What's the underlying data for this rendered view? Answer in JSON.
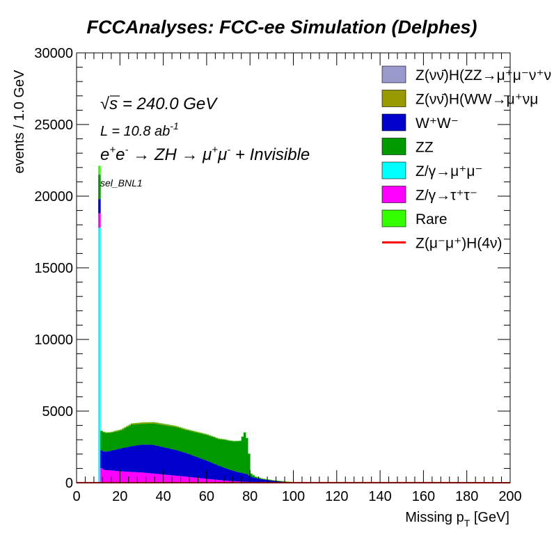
{
  "chart_data": {
    "type": "bar",
    "stacked": true,
    "histogram": true,
    "title": "FCCAnalyses: FCC-ee Simulation (Delphes)",
    "xlabel": "Missing p_T [GeV]",
    "xlabel_main": "Missing p",
    "xlabel_sub": "T",
    "xlabel_tail": " [GeV]",
    "ylabel": "events / 1.0 GeV",
    "xlim": [
      0,
      200
    ],
    "ylim": [
      0,
      30000
    ],
    "x_ticks": [
      "0",
      "20",
      "40",
      "60",
      "80",
      "100",
      "120",
      "140",
      "160",
      "180",
      "200"
    ],
    "y_ticks": [
      "0",
      "5000",
      "10000",
      "15000",
      "20000",
      "25000",
      "30000"
    ],
    "grid": false,
    "legend_position": "top-right",
    "annotations": {
      "sqrt_s": "√s = 240.0 GeV",
      "sqrt_sym": "√",
      "sqrt_var": "s",
      "sqrt_rest": " = 240.0 GeV",
      "lumi": "L = 10.8 ab",
      "lumi_exp": "-1",
      "process_part1": "e",
      "process_sup1": "+",
      "process_part2": "e",
      "process_sup2": "-",
      "process_part3": " → ZH → μ",
      "process_sup3": "+",
      "process_part4": "μ",
      "process_sup4": "-",
      "process_part5": " + Invisible",
      "selection": "sel_BNL1"
    },
    "legend": [
      {
        "label": "Z(νν̄)H(ZZ→μ⁺μ⁻ν⁺ν",
        "color": "#9999cc",
        "style": "box"
      },
      {
        "label": "Z(νν̄)H(WW→μ⁺νμ",
        "color": "#999900",
        "style": "box"
      },
      {
        "label": "W⁺W⁻",
        "color": "#0000cc",
        "style": "box"
      },
      {
        "label": "ZZ",
        "color": "#009900",
        "style": "box"
      },
      {
        "label": "Z/γ→μ⁺μ⁻",
        "color": "#00ffff",
        "style": "box"
      },
      {
        "label": "Z/γ→τ⁺τ⁻",
        "color": "#ff00ff",
        "style": "box"
      },
      {
        "label": "Rare",
        "color": "#33ff00",
        "style": "box"
      },
      {
        "label": "Z(μ⁻μ⁺)H(4ν)",
        "color": "#ff0000",
        "style": "line"
      }
    ],
    "bin_width": 1,
    "x_start": 10,
    "series": [
      {
        "name": "Z/γ→μ⁺μ⁻",
        "color": "#00ffff",
        "points": [
          [
            10,
            17800
          ],
          [
            11,
            60
          ],
          [
            13,
            25
          ],
          [
            20,
            15
          ],
          [
            40,
            10
          ],
          [
            70,
            5
          ],
          [
            100,
            0
          ]
        ]
      },
      {
        "name": "Z/γ→τ⁺τ⁻",
        "color": "#ff00ff",
        "points": [
          [
            10,
            1000
          ],
          [
            11,
            950
          ],
          [
            12,
            880
          ],
          [
            13,
            850
          ],
          [
            15,
            850
          ],
          [
            20,
            780
          ],
          [
            30,
            700
          ],
          [
            40,
            560
          ],
          [
            50,
            420
          ],
          [
            60,
            260
          ],
          [
            70,
            120
          ],
          [
            80,
            40
          ],
          [
            90,
            10
          ],
          [
            100,
            0
          ]
        ]
      },
      {
        "name": "W⁺W⁻",
        "color": "#0000cc",
        "points": [
          [
            10,
            1000
          ],
          [
            11,
            1250
          ],
          [
            15,
            1350
          ],
          [
            20,
            1600
          ],
          [
            25,
            1800
          ],
          [
            30,
            1950
          ],
          [
            35,
            2000
          ],
          [
            40,
            1900
          ],
          [
            45,
            1800
          ],
          [
            50,
            1650
          ],
          [
            55,
            1450
          ],
          [
            60,
            1250
          ],
          [
            65,
            1000
          ],
          [
            70,
            800
          ],
          [
            74,
            650
          ],
          [
            78,
            550
          ],
          [
            80,
            380
          ],
          [
            82,
            300
          ],
          [
            85,
            220
          ],
          [
            90,
            140
          ],
          [
            95,
            80
          ],
          [
            100,
            30
          ],
          [
            105,
            10
          ],
          [
            110,
            0
          ]
        ]
      },
      {
        "name": "ZZ",
        "color": "#009900",
        "points": [
          [
            10,
            1700
          ],
          [
            11,
            1350
          ],
          [
            15,
            1250
          ],
          [
            20,
            1250
          ],
          [
            25,
            1500
          ],
          [
            30,
            1450
          ],
          [
            35,
            1500
          ],
          [
            40,
            1550
          ],
          [
            45,
            1600
          ],
          [
            50,
            1600
          ],
          [
            55,
            1700
          ],
          [
            60,
            1800
          ],
          [
            65,
            1850
          ],
          [
            68,
            1950
          ],
          [
            72,
            2050
          ],
          [
            75,
            2200
          ],
          [
            77,
            2850
          ],
          [
            78,
            2500
          ],
          [
            79,
            1500
          ],
          [
            80,
            200
          ],
          [
            82,
            80
          ],
          [
            85,
            40
          ],
          [
            90,
            20
          ],
          [
            100,
            5
          ],
          [
            110,
            0
          ]
        ]
      },
      {
        "name": "Z(νν̄)H(WW→μ⁺νμ",
        "color": "#999900",
        "points": [
          [
            10,
            20
          ],
          [
            15,
            50
          ],
          [
            20,
            70
          ],
          [
            30,
            90
          ],
          [
            40,
            80
          ],
          [
            60,
            50
          ],
          [
            80,
            20
          ],
          [
            100,
            0
          ]
        ]
      },
      {
        "name": "Z(νν̄)H(ZZ→μ⁺μ⁻ν⁺ν",
        "color": "#9999cc",
        "points": [
          [
            10,
            5
          ],
          [
            30,
            10
          ],
          [
            60,
            8
          ],
          [
            90,
            0
          ]
        ]
      },
      {
        "name": "Rare",
        "color": "#33ff00",
        "points": [
          [
            10,
            600
          ],
          [
            11,
            5
          ],
          [
            30,
            3
          ],
          [
            80,
            1
          ],
          [
            100,
            0
          ]
        ]
      }
    ],
    "signal_line": {
      "name": "Z(μ⁻μ⁺)H(4ν)",
      "color": "#ff0000",
      "points": [
        [
          0,
          5
        ],
        [
          40,
          8
        ],
        [
          100,
          6
        ],
        [
          200,
          3
        ]
      ]
    }
  }
}
